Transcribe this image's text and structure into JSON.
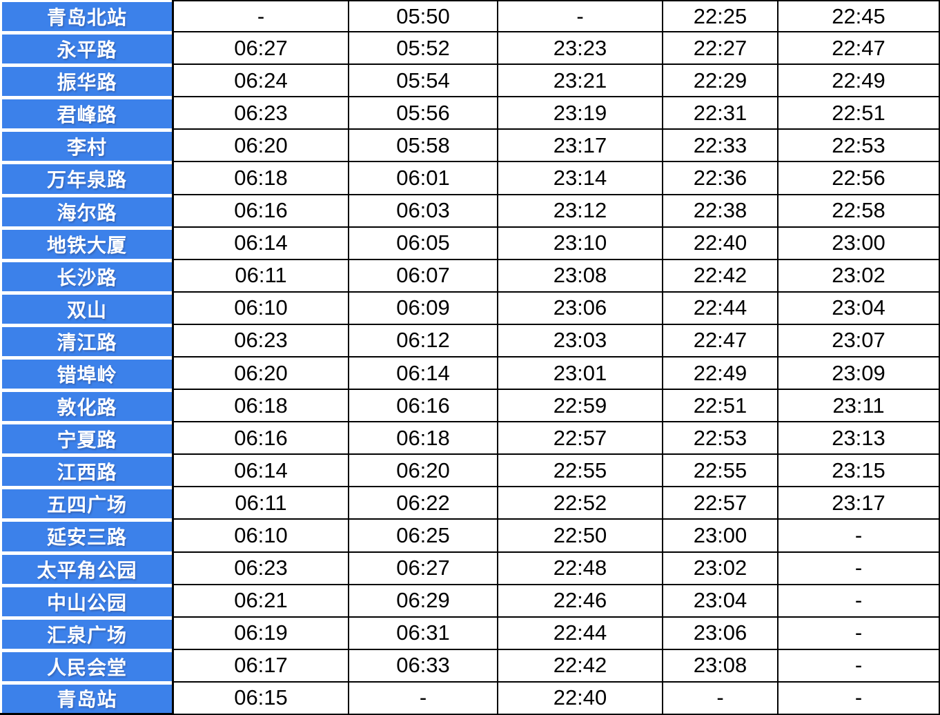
{
  "colors": {
    "station_bg": "#3c81ea",
    "station_text": "#ffffff",
    "time_text": "#000000",
    "grid_border": "#000000",
    "page_bg": "#ffffff"
  },
  "chart_data": {
    "type": "table",
    "description": "Metro timetable: station name column plus 5 train time columns (first/last train times). No header row visible.",
    "legend_position": "none",
    "grid": true,
    "rows": [
      {
        "station": "青岛北站",
        "times": [
          "-",
          "05:50",
          "-",
          "22:25",
          "22:45"
        ]
      },
      {
        "station": "永平路",
        "times": [
          "06:27",
          "05:52",
          "23:23",
          "22:27",
          "22:47"
        ]
      },
      {
        "station": "振华路",
        "times": [
          "06:24",
          "05:54",
          "23:21",
          "22:29",
          "22:49"
        ]
      },
      {
        "station": "君峰路",
        "times": [
          "06:23",
          "05:56",
          "23:19",
          "22:31",
          "22:51"
        ]
      },
      {
        "station": "李村",
        "times": [
          "06:20",
          "05:58",
          "23:17",
          "22:33",
          "22:53"
        ]
      },
      {
        "station": "万年泉路",
        "times": [
          "06:18",
          "06:01",
          "23:14",
          "22:36",
          "22:56"
        ]
      },
      {
        "station": "海尔路",
        "times": [
          "06:16",
          "06:03",
          "23:12",
          "22:38",
          "22:58"
        ]
      },
      {
        "station": "地铁大厦",
        "times": [
          "06:14",
          "06:05",
          "23:10",
          "22:40",
          "23:00"
        ]
      },
      {
        "station": "长沙路",
        "times": [
          "06:11",
          "06:07",
          "23:08",
          "22:42",
          "23:02"
        ]
      },
      {
        "station": "双山",
        "times": [
          "06:10",
          "06:09",
          "23:06",
          "22:44",
          "23:04"
        ]
      },
      {
        "station": "清江路",
        "times": [
          "06:23",
          "06:12",
          "23:03",
          "22:47",
          "23:07"
        ]
      },
      {
        "station": "错埠岭",
        "times": [
          "06:20",
          "06:14",
          "23:01",
          "22:49",
          "23:09"
        ]
      },
      {
        "station": "敦化路",
        "times": [
          "06:18",
          "06:16",
          "22:59",
          "22:51",
          "23:11"
        ]
      },
      {
        "station": "宁夏路",
        "times": [
          "06:16",
          "06:18",
          "22:57",
          "22:53",
          "23:13"
        ]
      },
      {
        "station": "江西路",
        "times": [
          "06:14",
          "06:20",
          "22:55",
          "22:55",
          "23:15"
        ]
      },
      {
        "station": "五四广场",
        "times": [
          "06:11",
          "06:22",
          "22:52",
          "22:57",
          "23:17"
        ]
      },
      {
        "station": "延安三路",
        "times": [
          "06:10",
          "06:25",
          "22:50",
          "23:00",
          "-"
        ]
      },
      {
        "station": "太平角公园",
        "times": [
          "06:23",
          "06:27",
          "22:48",
          "23:02",
          "-"
        ]
      },
      {
        "station": "中山公园",
        "times": [
          "06:21",
          "06:29",
          "22:46",
          "23:04",
          "-"
        ]
      },
      {
        "station": "汇泉广场",
        "times": [
          "06:19",
          "06:31",
          "22:44",
          "23:06",
          "-"
        ]
      },
      {
        "station": "人民会堂",
        "times": [
          "06:17",
          "06:33",
          "22:42",
          "23:08",
          "-"
        ]
      },
      {
        "station": "青岛站",
        "times": [
          "06:15",
          "-",
          "22:40",
          "-",
          "-"
        ]
      }
    ]
  }
}
